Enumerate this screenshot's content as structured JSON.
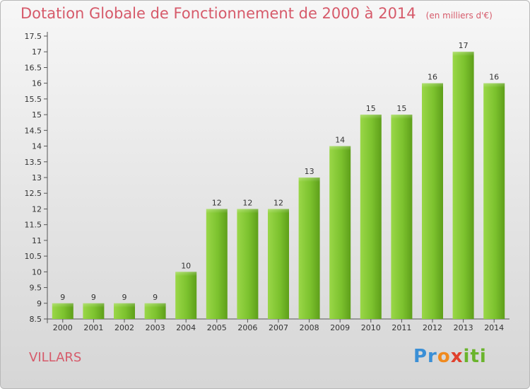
{
  "chart_data": {
    "type": "bar",
    "title": "Dotation Globale de Fonctionnement de 2000 à 2014",
    "unit": "(en milliers d'€)",
    "categories": [
      "2000",
      "2001",
      "2002",
      "2003",
      "2004",
      "2005",
      "2006",
      "2007",
      "2008",
      "2009",
      "2010",
      "2011",
      "2012",
      "2013",
      "2014"
    ],
    "values": [
      9,
      9,
      9,
      9,
      10,
      12,
      12,
      12,
      13,
      14,
      15,
      15,
      16,
      17,
      16
    ],
    "value_labels": [
      "9",
      "9",
      "9",
      "9",
      "10",
      "12",
      "12",
      "12",
      "13",
      "14",
      "15",
      "15",
      "16",
      "17",
      "16"
    ],
    "ylim": [
      8.5,
      17.5
    ],
    "yticks": [
      "8.5",
      "9",
      "9.5",
      "10",
      "10.5",
      "11",
      "11.5",
      "12",
      "12.5",
      "13",
      "13.5",
      "14",
      "14.5",
      "15",
      "15.5",
      "16",
      "16.5",
      "17",
      "17.5"
    ],
    "xlabel": "",
    "ylabel": "",
    "grid": false,
    "bar_color": "#7cc22e"
  },
  "commune": "VILLARS",
  "logo": {
    "p1": "Pr",
    "p2": "o",
    "p3": "x",
    "p4": "iti"
  }
}
